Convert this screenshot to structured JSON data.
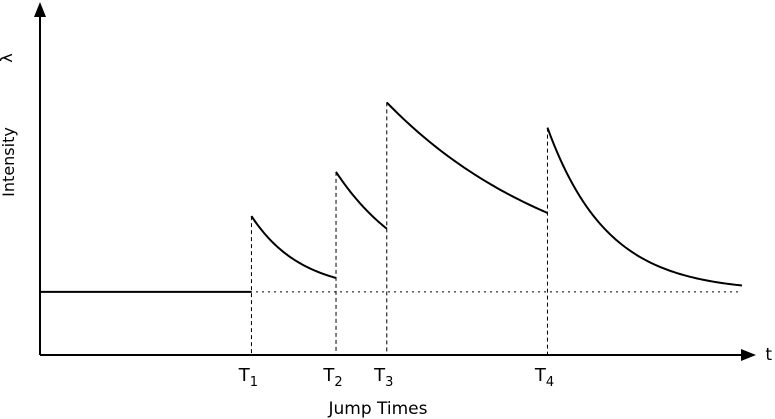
{
  "chart_data": {
    "type": "line",
    "xlabel": "Jump Times",
    "ylabel": "Intensity",
    "x_axis_symbol": "t",
    "y_axis_symbol": "λ",
    "ticks": [
      {
        "base": "T",
        "sub": "1",
        "t": 1.0
      },
      {
        "base": "T",
        "sub": "2",
        "t": 2.0
      },
      {
        "base": "T",
        "sub": "3",
        "t": 2.6
      },
      {
        "base": "T",
        "sub": "4",
        "t": 4.5
      }
    ],
    "xlim": [
      -1.5,
      6.8
    ],
    "ylim": [
      -1.0,
      4.4
    ],
    "baseline_intensity": 0.0,
    "series": [
      {
        "segments": [
          {
            "t_start": -1.5,
            "t_end": 1.0,
            "y_start": 0.0,
            "y_end": 0.0
          },
          {
            "t_start": 1.0,
            "t_end": 2.0,
            "y_start": 1.2,
            "y_end": 0.22
          },
          {
            "t_start": 2.0,
            "t_end": 2.6,
            "y_start": 1.9,
            "y_end": 1.0
          },
          {
            "t_start": 2.6,
            "t_end": 4.5,
            "y_start": 3.0,
            "y_end": 1.25
          },
          {
            "t_start": 4.5,
            "t_end": 6.8,
            "y_start": 2.6,
            "y_end": 0.1
          }
        ]
      }
    ],
    "grid": false,
    "legend": "none",
    "colors": {
      "curve": "#000000",
      "axis": "#000000",
      "guide": "#000000"
    }
  }
}
